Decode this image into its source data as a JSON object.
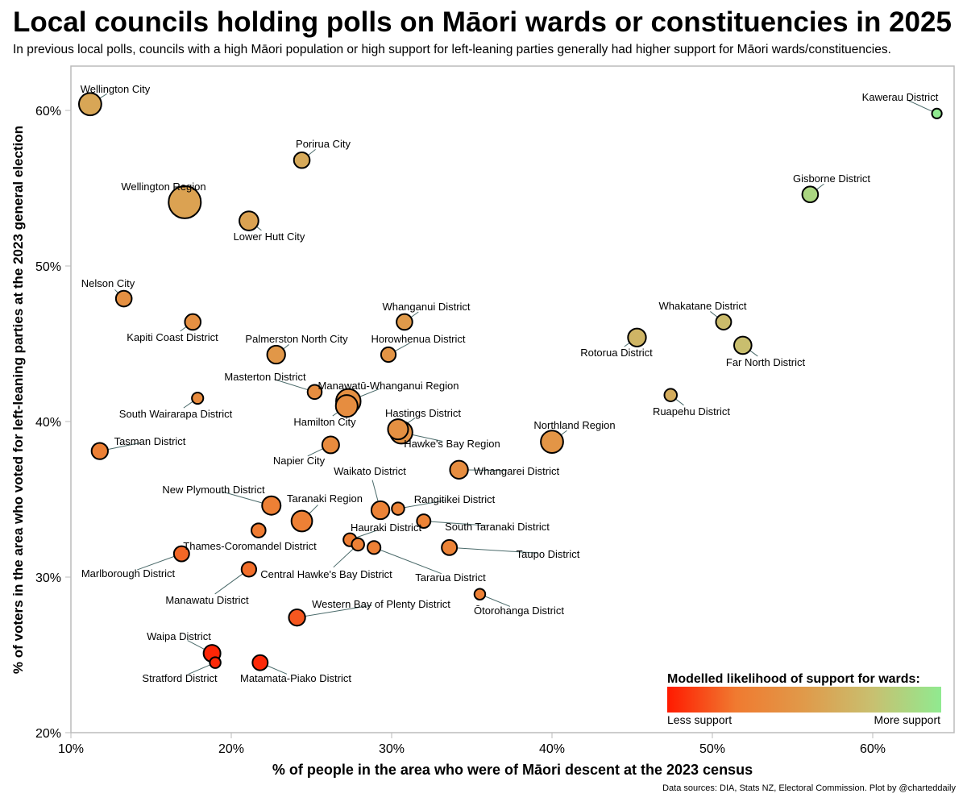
{
  "chart_data": {
    "type": "scatter",
    "title": "Local councils holding polls on Māori wards or constituencies in 2025",
    "subtitle": "In previous local polls, councils with a high Māori population or high support for left-leaning parties generally had higher support for Māori wards/constituencies.",
    "xlabel": "% of people in the area who were of Māori descent at the 2023 census",
    "ylabel": "% of voters in the area who voted for left-leaning parties at the 2023 general election",
    "xlim": [
      10,
      65
    ],
    "ylim": [
      20,
      63
    ],
    "xticks": [
      "10%",
      "20%",
      "30%",
      "40%",
      "50%",
      "60%"
    ],
    "xtick_values": [
      10,
      20,
      30,
      40,
      50,
      60
    ],
    "yticks": [
      "20%",
      "30%",
      "40%",
      "50%",
      "60%"
    ],
    "ytick_values": [
      20,
      30,
      40,
      50,
      60
    ],
    "grid": false,
    "legend": {
      "title": "Modelled likelihood of support for wards:",
      "low_label": "Less support",
      "high_label": "More support",
      "placement": "bottom-right",
      "colors": [
        "#ff1a00",
        "#f07a30",
        "#e09a4a",
        "#c8c070",
        "#90ea90"
      ]
    },
    "points": [
      {
        "name": "Wellington City",
        "x": 11.2,
        "y": 60.4,
        "size": 3.2,
        "likelihood": 0.58
      },
      {
        "name": "Kawerau District",
        "x": 64.0,
        "y": 59.8,
        "size": 0.9,
        "likelihood": 1.0
      },
      {
        "name": "Porirua City",
        "x": 24.4,
        "y": 56.8,
        "size": 2.0,
        "likelihood": 0.6
      },
      {
        "name": "Wellington Region",
        "x": 17.1,
        "y": 54.1,
        "size": 5.0,
        "likelihood": 0.55
      },
      {
        "name": "Lower Hutt City",
        "x": 21.1,
        "y": 52.9,
        "size": 2.6,
        "likelihood": 0.55
      },
      {
        "name": "Gisborne District",
        "x": 56.1,
        "y": 54.6,
        "size": 2.0,
        "likelihood": 0.88
      },
      {
        "name": "Nelson City",
        "x": 13.3,
        "y": 47.9,
        "size": 2.0,
        "likelihood": 0.42
      },
      {
        "name": "Kapiti Coast District",
        "x": 17.6,
        "y": 46.4,
        "size": 2.0,
        "likelihood": 0.42
      },
      {
        "name": "Whanganui District",
        "x": 30.8,
        "y": 46.4,
        "size": 2.0,
        "likelihood": 0.5
      },
      {
        "name": "Whakatane District",
        "x": 50.7,
        "y": 46.4,
        "size": 1.9,
        "likelihood": 0.72
      },
      {
        "name": "Rotorua District",
        "x": 45.3,
        "y": 45.4,
        "size": 2.4,
        "likelihood": 0.68
      },
      {
        "name": "Far North District",
        "x": 51.9,
        "y": 44.9,
        "size": 2.3,
        "likelihood": 0.74
      },
      {
        "name": "Palmerston North City",
        "x": 22.8,
        "y": 44.3,
        "size": 2.4,
        "likelihood": 0.48
      },
      {
        "name": "Horowhenua District",
        "x": 29.8,
        "y": 44.3,
        "size": 1.8,
        "likelihood": 0.45
      },
      {
        "name": "Ruapehu District",
        "x": 47.4,
        "y": 41.7,
        "size": 1.4,
        "likelihood": 0.62
      },
      {
        "name": "Masterton District",
        "x": 25.2,
        "y": 41.9,
        "size": 1.7,
        "likelihood": 0.4
      },
      {
        "name": "Manawatū-Whanganui Region",
        "x": 27.3,
        "y": 41.3,
        "size": 3.6,
        "likelihood": 0.42
      },
      {
        "name": "Hamilton City",
        "x": 27.2,
        "y": 41.0,
        "size": 3.1,
        "likelihood": 0.4
      },
      {
        "name": "South Wairarapa District",
        "x": 17.9,
        "y": 41.5,
        "size": 1.2,
        "likelihood": 0.38
      },
      {
        "name": "Hastings District",
        "x": 30.4,
        "y": 39.5,
        "size": 2.8,
        "likelihood": 0.42
      },
      {
        "name": "Hawke's Bay Region",
        "x": 30.6,
        "y": 39.3,
        "size": 3.2,
        "likelihood": 0.44
      },
      {
        "name": "Northland Region",
        "x": 40.0,
        "y": 38.7,
        "size": 3.2,
        "likelihood": 0.46
      },
      {
        "name": "Napier City",
        "x": 26.2,
        "y": 38.5,
        "size": 2.2,
        "likelihood": 0.38
      },
      {
        "name": "Tasman District",
        "x": 11.8,
        "y": 38.1,
        "size": 2.1,
        "likelihood": 0.3
      },
      {
        "name": "Whangarei District",
        "x": 34.2,
        "y": 36.9,
        "size": 2.4,
        "likelihood": 0.4
      },
      {
        "name": "New Plymouth District",
        "x": 22.5,
        "y": 34.6,
        "size": 2.5,
        "likelihood": 0.3
      },
      {
        "name": "Waikato District",
        "x": 29.3,
        "y": 34.3,
        "size": 2.4,
        "likelihood": 0.32
      },
      {
        "name": "Rangitikei District",
        "x": 30.4,
        "y": 34.4,
        "size": 1.4,
        "likelihood": 0.32
      },
      {
        "name": "Taranaki Region",
        "x": 24.4,
        "y": 33.6,
        "size": 2.9,
        "likelihood": 0.3
      },
      {
        "name": "South Taranaki District",
        "x": 32.0,
        "y": 33.6,
        "size": 1.6,
        "likelihood": 0.32
      },
      {
        "name": "Thames-Coromandel District",
        "x": 21.7,
        "y": 33.0,
        "size": 1.7,
        "likelihood": 0.26
      },
      {
        "name": "Hauraki District",
        "x": 27.4,
        "y": 32.4,
        "size": 1.5,
        "likelihood": 0.28
      },
      {
        "name": "Central Hawke's Bay District",
        "x": 27.9,
        "y": 32.1,
        "size": 1.4,
        "likelihood": 0.3
      },
      {
        "name": "Tararua District",
        "x": 28.9,
        "y": 31.9,
        "size": 1.5,
        "likelihood": 0.3
      },
      {
        "name": "Taupo District",
        "x": 33.6,
        "y": 31.9,
        "size": 1.9,
        "likelihood": 0.32
      },
      {
        "name": "Marlborough District",
        "x": 16.9,
        "y": 31.5,
        "size": 1.9,
        "likelihood": 0.2
      },
      {
        "name": "Manawatu District",
        "x": 21.1,
        "y": 30.5,
        "size": 1.8,
        "likelihood": 0.22
      },
      {
        "name": "Ōtorohanga District",
        "x": 35.5,
        "y": 28.9,
        "size": 1.1,
        "likelihood": 0.3
      },
      {
        "name": "Western Bay of Plenty District",
        "x": 24.1,
        "y": 27.4,
        "size": 2.1,
        "likelihood": 0.16
      },
      {
        "name": "Waipa District",
        "x": 18.8,
        "y": 25.1,
        "size": 2.2,
        "likelihood": 0.03
      },
      {
        "name": "Stratford District",
        "x": 19.0,
        "y": 24.5,
        "size": 1.1,
        "likelihood": 0.04
      },
      {
        "name": "Matamata-Piako District",
        "x": 21.8,
        "y": 24.5,
        "size": 1.9,
        "likelihood": 0.04
      }
    ]
  },
  "footer": "Data sources: DIA, Stats NZ, Electoral Commission. Plot by @charteddaily"
}
